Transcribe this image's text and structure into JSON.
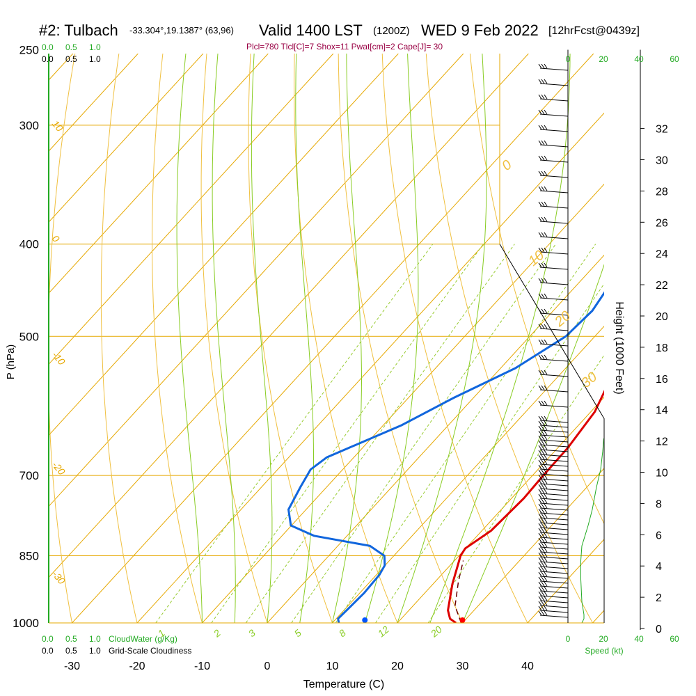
{
  "header": {
    "station": "#2: Tulbach",
    "coords": "-33.304°,19.1387° (63,96)",
    "valid": "Valid 1400 LST",
    "utc": "(1200Z)",
    "date": "WED 9 Feb 2022",
    "forecast": "[12hrFcst@0439z]",
    "indices": "Plcl=780 Tlcl[C]=7 Shox=11 Pwat[cm]=2 Cape[J]= 30"
  },
  "chart_data": {
    "type": "line",
    "subtype": "skew-t log-p sounding",
    "xlabel": "Temperature (C)",
    "ylabel": "P (hPa)",
    "right_label": "Height (1000 Feet)",
    "x_ticks": [
      "-30",
      "-20",
      "-10",
      "0",
      "10",
      "20",
      "30",
      "40"
    ],
    "x_values": [
      -30,
      -20,
      -10,
      0,
      10,
      20,
      30,
      40
    ],
    "p_ticks": [
      "250",
      "300",
      "400",
      "500",
      "700",
      "850",
      "1000"
    ],
    "p_values": [
      250,
      300,
      400,
      500,
      700,
      850,
      1000
    ],
    "height_ticks": [
      "0",
      "2",
      "4",
      "6",
      "8",
      "10",
      "12",
      "14",
      "16",
      "18",
      "20",
      "22",
      "24",
      "26",
      "28",
      "30",
      "32"
    ],
    "height_values": [
      0,
      2,
      4,
      6,
      8,
      10,
      12,
      14,
      16,
      18,
      20,
      22,
      24,
      26,
      28,
      30,
      32
    ],
    "top_scale_green": [
      "0.0",
      "0.5",
      "1.0"
    ],
    "top_scale_black": [
      "0.0",
      "0.5",
      "1.0"
    ],
    "bottom_scale_green": [
      "0.0",
      "0.5",
      "1.0"
    ],
    "bottom_scale_black": [
      "0.0",
      "0.5",
      "1.0"
    ],
    "cloudwater_label": "CloudWater (g/Kg)",
    "cloudiness_label": "Grid-Scale Cloudiness",
    "speed_top_ticks": [
      "0",
      "20",
      "40",
      "60"
    ],
    "speed_bottom_ticks": [
      "0",
      "20",
      "40",
      "60"
    ],
    "speed_label": "Speed (kt)",
    "dry_adiabat_labels": [
      "0",
      "10",
      "20",
      "30"
    ],
    "moist_adiabat_labels": [
      "1",
      "2",
      "3",
      "5",
      "8",
      "12",
      "20"
    ],
    "isotherm_labels": [
      "10",
      "0",
      "-10",
      "-20",
      "-30"
    ],
    "temperature": {
      "color": "#dd0000",
      "points": [
        [
          29.0,
          1000
        ],
        [
          27.5,
          990
        ],
        [
          26.0,
          970
        ],
        [
          23.0,
          910
        ],
        [
          21.0,
          865
        ],
        [
          20.3,
          850
        ],
        [
          20.0,
          835
        ],
        [
          21.5,
          800
        ],
        [
          22.0,
          740
        ],
        [
          21.8,
          700
        ],
        [
          21.7,
          655
        ],
        [
          20.8,
          600
        ],
        [
          18.4,
          550
        ],
        [
          16.7,
          500
        ],
        [
          14.5,
          460
        ],
        [
          12.6,
          430
        ],
        [
          10.3,
          400
        ],
        [
          6.8,
          360
        ],
        [
          3.8,
          330
        ],
        [
          1.0,
          300
        ],
        [
          -1.5,
          280
        ],
        [
          -3.6,
          264
        ]
      ]
    },
    "dewpoint": {
      "color": "#1166dd",
      "points": [
        [
          11.0,
          1000
        ],
        [
          10.3,
          990
        ],
        [
          10.5,
          960
        ],
        [
          10.7,
          930
        ],
        [
          10.5,
          890
        ],
        [
          10.0,
          870
        ],
        [
          8.6,
          850
        ],
        [
          5.0,
          830
        ],
        [
          -5.0,
          810
        ],
        [
          -10.0,
          790
        ],
        [
          -12.6,
          760
        ],
        [
          -13.9,
          720
        ],
        [
          -14.8,
          690
        ],
        [
          -14.0,
          670
        ],
        [
          -7.0,
          620
        ],
        [
          -2.8,
          580
        ],
        [
          2.5,
          540
        ],
        [
          5.8,
          500
        ],
        [
          6.3,
          470
        ],
        [
          5.3,
          440
        ],
        [
          3.3,
          400
        ],
        [
          0.6,
          370
        ],
        [
          -2.4,
          345
        ],
        [
          -6.5,
          320
        ],
        [
          -7.8,
          300
        ],
        [
          -8.8,
          280
        ],
        [
          -9.6,
          264
        ]
      ]
    },
    "parcel": {
      "color": "#6a0000",
      "points": [
        [
          29.8,
          1000
        ],
        [
          26.5,
          960
        ],
        [
          23.6,
          905
        ],
        [
          21.4,
          860
        ]
      ]
    },
    "surface_dot_temp": {
      "color": "#ff0000",
      "t": 30.0,
      "p": 1000
    },
    "surface_dot_dew": {
      "color": "#0055ff",
      "t": 15.0,
      "p": 1000
    },
    "wind_speed_profile": [
      [
        0,
        1000
      ],
      [
        2,
        990
      ],
      [
        2,
        980
      ],
      [
        0,
        950
      ],
      [
        -1,
        900
      ],
      [
        -1,
        860
      ],
      [
        0,
        830
      ],
      [
        3,
        810
      ],
      [
        6,
        790
      ],
      [
        10,
        760
      ],
      [
        14,
        720
      ],
      [
        18,
        690
      ],
      [
        20,
        660
      ],
      [
        21,
        640
      ]
    ],
    "height_trace": [
      [
        0,
        0
      ],
      [
        0,
        2
      ],
      [
        0,
        4
      ],
      [
        0,
        5
      ],
      [
        1,
        6
      ],
      [
        5,
        7
      ],
      [
        10,
        8
      ],
      [
        15,
        9
      ],
      [
        19,
        10
      ],
      [
        20,
        12
      ],
      [
        22,
        14
      ],
      [
        24,
        16
      ],
      [
        28,
        20
      ],
      [
        33,
        24
      ],
      [
        38,
        27
      ],
      [
        40,
        28
      ],
      [
        40,
        30
      ],
      [
        39,
        32
      ],
      [
        38,
        33
      ]
    ],
    "colors": {
      "isotherm": "#e6a800",
      "dry_adiabat": "#f0c040",
      "moist_adiabat": "#88cc22",
      "mixing_ratio": "#99cc33",
      "frame": "#000000",
      "accent_green": "#22aa22",
      "indices": "#990044"
    }
  }
}
